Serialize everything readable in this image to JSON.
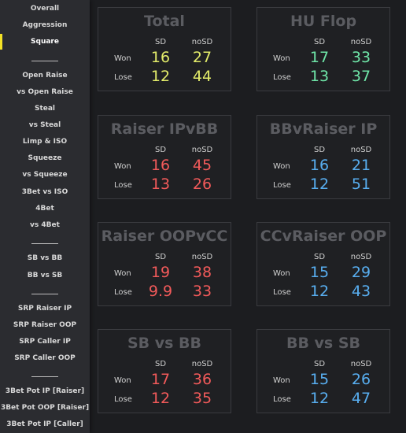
{
  "sidebar": {
    "items": [
      {
        "label": "Overall"
      },
      {
        "label": "Aggression"
      },
      {
        "label": "Square",
        "active": true
      },
      {
        "label": "Open Raise"
      },
      {
        "label": "vs Open Raise"
      },
      {
        "label": "Steal"
      },
      {
        "label": "vs Steal"
      },
      {
        "label": "Limp & ISO"
      },
      {
        "label": "Squeeze"
      },
      {
        "label": "vs Squeeze"
      },
      {
        "label": "3Bet vs ISO"
      },
      {
        "label": "4Bet"
      },
      {
        "label": "vs 4Bet"
      },
      {
        "label": "SB vs BB"
      },
      {
        "label": "BB vs SB"
      },
      {
        "label": "SRP Raiser IP"
      },
      {
        "label": "SRP Raiser OOP"
      },
      {
        "label": "SRP Caller IP"
      },
      {
        "label": "SRP Caller OOP"
      },
      {
        "label": "3Bet Pot IP [Raiser]"
      },
      {
        "label": "3Bet Pot OOP [Raiser]"
      },
      {
        "label": "3Bet Pot IP [Caller]"
      }
    ]
  },
  "colors": {
    "yellow": "#e3ec6a",
    "green": "#6fe6a8",
    "red": "#f25a5a",
    "blue": "#58aef0",
    "title": "#5b5c61",
    "accent": "#f4e226"
  },
  "cards": [
    {
      "title": "Total",
      "col_sd": "SD",
      "col_nosd": "noSD",
      "row_won": "Won",
      "row_lose": "Lose",
      "won_sd": "16",
      "won_nosd": "27",
      "lose_sd": "12",
      "lose_nosd": "44",
      "color": "yellow"
    },
    {
      "title": "HU Flop",
      "col_sd": "SD",
      "col_nosd": "noSD",
      "row_won": "Won",
      "row_lose": "Lose",
      "won_sd": "17",
      "won_nosd": "33",
      "lose_sd": "13",
      "lose_nosd": "37",
      "color": "green"
    },
    {
      "title": "Raiser IPvBB",
      "col_sd": "SD",
      "col_nosd": "noSD",
      "row_won": "Won",
      "row_lose": "Lose",
      "won_sd": "16",
      "won_nosd": "45",
      "lose_sd": "13",
      "lose_nosd": "26",
      "color": "red"
    },
    {
      "title": "BBvRaiser IP",
      "col_sd": "SD",
      "col_nosd": "noSD",
      "row_won": "Won",
      "row_lose": "Lose",
      "won_sd": "16",
      "won_nosd": "21",
      "lose_sd": "12",
      "lose_nosd": "51",
      "color": "blue"
    },
    {
      "title": "Raiser OOPvCC",
      "col_sd": "SD",
      "col_nosd": "noSD",
      "row_won": "Won",
      "row_lose": "Lose",
      "won_sd": "19",
      "won_nosd": "38",
      "lose_sd": "9.9",
      "lose_nosd": "33",
      "color": "red"
    },
    {
      "title": "CCvRaiser OOP",
      "col_sd": "SD",
      "col_nosd": "noSD",
      "row_won": "Won",
      "row_lose": "Lose",
      "won_sd": "15",
      "won_nosd": "29",
      "lose_sd": "12",
      "lose_nosd": "43",
      "color": "blue"
    },
    {
      "title": "SB vs BB",
      "col_sd": "SD",
      "col_nosd": "noSD",
      "row_won": "Won",
      "row_lose": "Lose",
      "won_sd": "17",
      "won_nosd": "36",
      "lose_sd": "12",
      "lose_nosd": "35",
      "color": "red"
    },
    {
      "title": "BB vs SB",
      "col_sd": "SD",
      "col_nosd": "noSD",
      "row_won": "Won",
      "row_lose": "Lose",
      "won_sd": "15",
      "won_nosd": "26",
      "lose_sd": "12",
      "lose_nosd": "47",
      "color": "blue"
    }
  ]
}
